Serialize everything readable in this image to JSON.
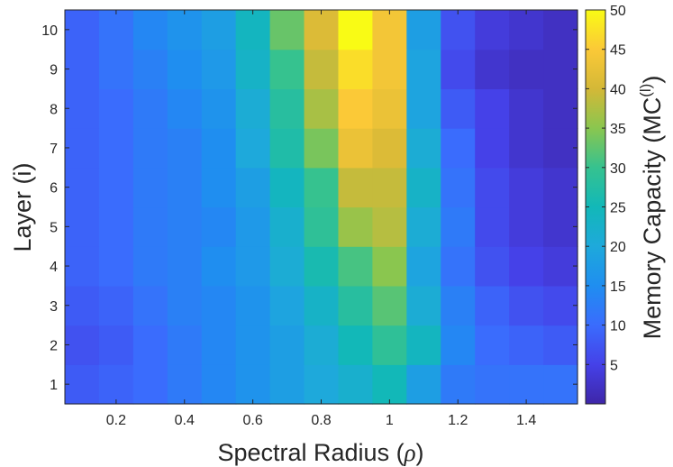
{
  "chart_data": {
    "type": "heatmap",
    "title": "",
    "xlabel_prefix": "Spectral Radius (",
    "xlabel_symbol": "ρ",
    "xlabel_suffix": ")",
    "ylabel": "Layer (i)",
    "colorbar_label_prefix": "Memory Capacity (MC",
    "colorbar_label_sup": "(l)",
    "colorbar_label_suffix": ")",
    "x": [
      0.1,
      0.2,
      0.3,
      0.4,
      0.5,
      0.6,
      0.7,
      0.8,
      0.9,
      1.0,
      1.1,
      1.2,
      1.3,
      1.4,
      1.5
    ],
    "y": [
      1,
      2,
      3,
      4,
      5,
      6,
      7,
      8,
      9,
      10
    ],
    "xlim": [
      0.05,
      1.55
    ],
    "ylim": [
      0.5,
      10.5
    ],
    "xticks": [
      0.2,
      0.4,
      0.6,
      0.8,
      1.0,
      1.2,
      1.4
    ],
    "xtick_labels": [
      "0.2",
      "0.4",
      "0.6",
      "0.8",
      "1",
      "1.2",
      "1.4"
    ],
    "yticks": [
      1,
      2,
      3,
      4,
      5,
      6,
      7,
      8,
      9,
      10
    ],
    "ytick_labels": [
      "1",
      "2",
      "3",
      "4",
      "5",
      "6",
      "7",
      "8",
      "9",
      "10"
    ],
    "clim": [
      0,
      50
    ],
    "colorbar_ticks": [
      5,
      10,
      15,
      20,
      25,
      30,
      35,
      40,
      45,
      50
    ],
    "colorbar_tick_labels": [
      "5",
      "10",
      "15",
      "20",
      "25",
      "30",
      "35",
      "40",
      "45",
      "50"
    ],
    "colormap": "parula",
    "values": [
      [
        8,
        9,
        10,
        12,
        14,
        16,
        18,
        20,
        22,
        25,
        18,
        12,
        11,
        11,
        11
      ],
      [
        7,
        8,
        10,
        12,
        14,
        16,
        18,
        21,
        25,
        29,
        24,
        14,
        10,
        9,
        8
      ],
      [
        8,
        9,
        11,
        13,
        14,
        16,
        19,
        23,
        28,
        32,
        21,
        13,
        9,
        7,
        6
      ],
      [
        9,
        10,
        12,
        13,
        15,
        17,
        21,
        26,
        31,
        35,
        19,
        11,
        7,
        5,
        4
      ],
      [
        9,
        10,
        12,
        13,
        14,
        17,
        22,
        29,
        36,
        38,
        21,
        12,
        6,
        4,
        3
      ],
      [
        9,
        10,
        12,
        13,
        15,
        18,
        24,
        30,
        39,
        39,
        23,
        11,
        6,
        4,
        3
      ],
      [
        9,
        10,
        12,
        13,
        15,
        20,
        27,
        34,
        43,
        41,
        21,
        10,
        5,
        3,
        2
      ],
      [
        9,
        10,
        12,
        14,
        16,
        21,
        28,
        37,
        45,
        43,
        19,
        8,
        5,
        3,
        2
      ],
      [
        9,
        11,
        13,
        15,
        17,
        23,
        30,
        39,
        47,
        44,
        19,
        6,
        3,
        2,
        2
      ],
      [
        9,
        11,
        14,
        16,
        18,
        24,
        33,
        41,
        50,
        44,
        18,
        7,
        4,
        3,
        2
      ]
    ]
  }
}
